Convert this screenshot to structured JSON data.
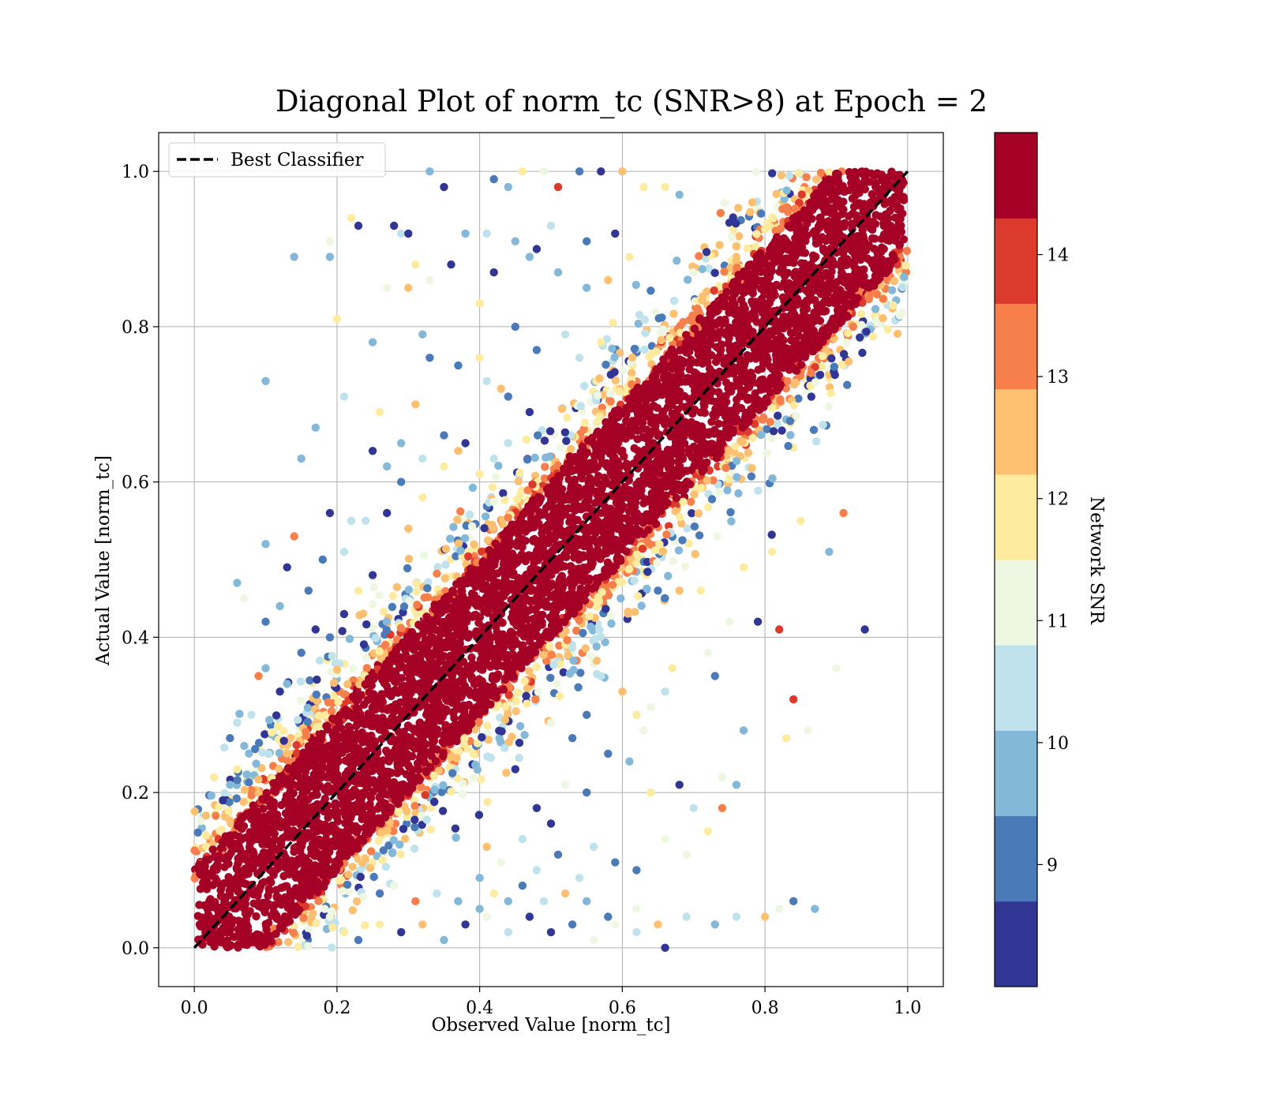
{
  "chart_data": {
    "type": "scatter",
    "title": "Diagonal Plot of norm_tc (SNR>8) at Epoch = 2",
    "xlabel": "Observed Value [norm_tc]",
    "ylabel": "Actual Value [norm_tc]",
    "xlim": [
      -0.05,
      1.05
    ],
    "ylim": [
      -0.05,
      1.05
    ],
    "xticks": [
      "0.0",
      "0.2",
      "0.4",
      "0.6",
      "0.8",
      "1.0"
    ],
    "yticks": [
      "0.0",
      "0.2",
      "0.4",
      "0.6",
      "0.8",
      "1.0"
    ],
    "grid": true,
    "legend": {
      "position": "top-left",
      "entries": [
        {
          "label": "Best Classifier",
          "style": "black dashed line"
        }
      ]
    },
    "reference_line": {
      "x": [
        0,
        1
      ],
      "y": [
        0,
        1
      ],
      "label": "Best Classifier"
    },
    "colorbar": {
      "label": "Network SNR",
      "range": [
        8,
        15
      ],
      "ticks": [
        "9",
        "10",
        "11",
        "12",
        "13",
        "14"
      ],
      "colors": [
        "#313695",
        "#4575b4",
        "#74add1",
        "#abd9e9",
        "#e0f3f8",
        "#ffffbf",
        "#fee090",
        "#fdae61",
        "#f46d43",
        "#d73027",
        "#a50026"
      ],
      "bands": [
        "#313695",
        "#4a7ab8",
        "#84b8d8",
        "#bfe2ec",
        "#eef7e1",
        "#fdeba0",
        "#fdbf70",
        "#f67f4b",
        "#db3a2c",
        "#a50026"
      ]
    },
    "series": [
      {
        "description": "dense diagonal band of points, high SNR (>14) dominant near y=x",
        "band_halfwidth": 0.08
      },
      {
        "description": "scattered outliers with lower SNR (8-13) spread off-diagonal"
      }
    ],
    "outliers": [
      [
        0.33,
        1.0
      ],
      [
        0.35,
        0.98
      ],
      [
        0.42,
        0.99
      ],
      [
        0.44,
        0.98
      ],
      [
        0.46,
        1.0
      ],
      [
        0.49,
        1.0
      ],
      [
        0.51,
        0.98
      ],
      [
        0.54,
        1.0
      ],
      [
        0.57,
        1.0
      ],
      [
        0.6,
        1.0
      ],
      [
        0.63,
        0.98
      ],
      [
        0.66,
        0.98
      ],
      [
        0.68,
        0.97
      ],
      [
        0.19,
        0.91
      ],
      [
        0.19,
        0.89
      ],
      [
        0.22,
        0.94
      ],
      [
        0.23,
        0.93
      ],
      [
        0.28,
        0.93
      ],
      [
        0.29,
        0.92
      ],
      [
        0.3,
        0.92
      ],
      [
        0.31,
        0.88
      ],
      [
        0.38,
        0.92
      ],
      [
        0.41,
        0.92
      ],
      [
        0.45,
        0.91
      ],
      [
        0.48,
        0.9
      ],
      [
        0.5,
        0.93
      ],
      [
        0.55,
        0.91
      ],
      [
        0.59,
        0.92
      ],
      [
        0.14,
        0.89
      ],
      [
        0.2,
        0.81
      ],
      [
        0.27,
        0.85
      ],
      [
        0.3,
        0.85
      ],
      [
        0.33,
        0.86
      ],
      [
        0.36,
        0.88
      ],
      [
        0.4,
        0.83
      ],
      [
        0.42,
        0.87
      ],
      [
        0.47,
        0.89
      ],
      [
        0.51,
        0.87
      ],
      [
        0.55,
        0.85
      ],
      [
        0.58,
        0.86
      ],
      [
        0.61,
        0.89
      ],
      [
        0.25,
        0.78
      ],
      [
        0.32,
        0.79
      ],
      [
        0.33,
        0.76
      ],
      [
        0.37,
        0.75
      ],
      [
        0.4,
        0.76
      ],
      [
        0.43,
        0.72
      ],
      [
        0.45,
        0.8
      ],
      [
        0.48,
        0.77
      ],
      [
        0.52,
        0.79
      ],
      [
        0.54,
        0.76
      ],
      [
        0.57,
        0.78
      ],
      [
        0.1,
        0.73
      ],
      [
        0.17,
        0.67
      ],
      [
        0.21,
        0.71
      ],
      [
        0.26,
        0.69
      ],
      [
        0.29,
        0.65
      ],
      [
        0.31,
        0.7
      ],
      [
        0.35,
        0.66
      ],
      [
        0.38,
        0.65
      ],
      [
        0.41,
        0.73
      ],
      [
        0.44,
        0.71
      ],
      [
        0.47,
        0.69
      ],
      [
        0.15,
        0.63
      ],
      [
        0.19,
        0.56
      ],
      [
        0.22,
        0.55
      ],
      [
        0.25,
        0.64
      ],
      [
        0.27,
        0.62
      ],
      [
        0.29,
        0.6
      ],
      [
        0.32,
        0.63
      ],
      [
        0.35,
        0.62
      ],
      [
        0.37,
        0.64
      ],
      [
        0.4,
        0.61
      ],
      [
        0.42,
        0.63
      ],
      [
        0.06,
        0.47
      ],
      [
        0.07,
        0.45
      ],
      [
        0.1,
        0.52
      ],
      [
        0.13,
        0.49
      ],
      [
        0.14,
        0.53
      ],
      [
        0.16,
        0.46
      ],
      [
        0.18,
        0.5
      ],
      [
        0.21,
        0.51
      ],
      [
        0.24,
        0.55
      ],
      [
        0.27,
        0.56
      ],
      [
        0.3,
        0.54
      ],
      [
        0.32,
        0.58
      ],
      [
        0.1,
        0.42
      ],
      [
        0.12,
        0.44
      ],
      [
        0.15,
        0.38
      ],
      [
        0.17,
        0.41
      ],
      [
        0.19,
        0.4
      ],
      [
        0.21,
        0.43
      ],
      [
        0.23,
        0.46
      ],
      [
        0.25,
        0.48
      ],
      [
        0.05,
        0.27
      ],
      [
        0.06,
        0.29
      ],
      [
        0.08,
        0.3
      ],
      [
        0.09,
        0.35
      ],
      [
        0.1,
        0.36
      ],
      [
        0.12,
        0.33
      ],
      [
        0.13,
        0.34
      ],
      [
        0.03,
        0.17
      ],
      [
        0.04,
        0.19
      ],
      [
        0.05,
        0.21
      ],
      [
        0.06,
        0.23
      ],
      [
        0.07,
        0.26
      ],
      [
        0.91,
        0.56
      ],
      [
        0.89,
        0.51
      ],
      [
        0.85,
        0.55
      ],
      [
        0.81,
        0.51
      ],
      [
        0.77,
        0.49
      ],
      [
        0.75,
        0.42
      ],
      [
        0.79,
        0.42
      ],
      [
        0.82,
        0.41
      ],
      [
        0.94,
        0.41
      ],
      [
        0.9,
        0.36
      ],
      [
        0.84,
        0.32
      ],
      [
        0.86,
        0.28
      ],
      [
        0.83,
        0.27
      ],
      [
        0.77,
        0.28
      ],
      [
        0.72,
        0.38
      ],
      [
        0.73,
        0.35
      ],
      [
        0.71,
        0.46
      ],
      [
        0.68,
        0.46
      ],
      [
        0.65,
        0.46
      ],
      [
        0.67,
        0.36
      ],
      [
        0.66,
        0.33
      ],
      [
        0.64,
        0.31
      ],
      [
        0.63,
        0.28
      ],
      [
        0.62,
        0.3
      ],
      [
        0.6,
        0.33
      ],
      [
        0.57,
        0.35
      ],
      [
        0.55,
        0.3
      ],
      [
        0.53,
        0.27
      ],
      [
        0.5,
        0.29
      ],
      [
        0.76,
        0.21
      ],
      [
        0.74,
        0.22
      ],
      [
        0.7,
        0.18
      ],
      [
        0.68,
        0.21
      ],
      [
        0.64,
        0.2
      ],
      [
        0.61,
        0.24
      ],
      [
        0.58,
        0.25
      ],
      [
        0.55,
        0.2
      ],
      [
        0.52,
        0.21
      ],
      [
        0.5,
        0.16
      ],
      [
        0.48,
        0.18
      ],
      [
        0.45,
        0.23
      ],
      [
        0.72,
        0.15
      ],
      [
        0.74,
        0.18
      ],
      [
        0.69,
        0.12
      ],
      [
        0.66,
        0.14
      ],
      [
        0.62,
        0.1
      ],
      [
        0.59,
        0.11
      ],
      [
        0.56,
        0.13
      ],
      [
        0.54,
        0.09
      ],
      [
        0.51,
        0.12
      ],
      [
        0.48,
        0.1
      ],
      [
        0.46,
        0.14
      ],
      [
        0.43,
        0.11
      ],
      [
        0.41,
        0.13
      ],
      [
        0.4,
        0.09
      ],
      [
        0.87,
        0.05
      ],
      [
        0.84,
        0.06
      ],
      [
        0.82,
        0.05
      ],
      [
        0.8,
        0.04
      ],
      [
        0.76,
        0.04
      ],
      [
        0.73,
        0.03
      ],
      [
        0.69,
        0.04
      ],
      [
        0.65,
        0.03
      ],
      [
        0.62,
        0.02
      ],
      [
        0.59,
        0.03
      ],
      [
        0.56,
        0.01
      ],
      [
        0.53,
        0.03
      ],
      [
        0.5,
        0.02
      ],
      [
        0.47,
        0.04
      ],
      [
        0.44,
        0.02
      ],
      [
        0.41,
        0.04
      ],
      [
        0.38,
        0.03
      ],
      [
        0.35,
        0.01
      ],
      [
        0.32,
        0.03
      ],
      [
        0.29,
        0.02
      ],
      [
        0.26,
        0.03
      ],
      [
        0.23,
        0.01
      ],
      [
        0.21,
        0.02
      ],
      [
        0.19,
        0.04
      ],
      [
        0.66,
        0.0
      ],
      [
        0.62,
        0.05
      ],
      [
        0.58,
        0.04
      ],
      [
        0.55,
        0.06
      ],
      [
        0.52,
        0.07
      ],
      [
        0.49,
        0.06
      ],
      [
        0.46,
        0.08
      ],
      [
        0.44,
        0.06
      ],
      [
        0.42,
        0.07
      ],
      [
        0.4,
        0.05
      ],
      [
        0.37,
        0.06
      ],
      [
        0.34,
        0.07
      ],
      [
        0.31,
        0.06
      ],
      [
        0.28,
        0.08
      ],
      [
        0.26,
        0.07
      ]
    ]
  }
}
